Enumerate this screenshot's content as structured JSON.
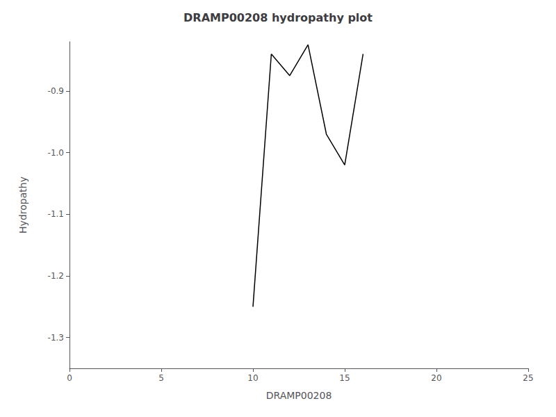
{
  "chart_data": {
    "type": "line",
    "title": "DRAMP00208 hydropathy plot",
    "xlabel": "DRAMP00208",
    "ylabel": "Hydropathy",
    "x": [
      10,
      11,
      12,
      12,
      13,
      14,
      15,
      16
    ],
    "values": [
      -1.25,
      -0.84,
      -0.875,
      -0.875,
      -0.825,
      -0.97,
      -1.02,
      -0.84
    ],
    "color": "#000000",
    "xlim": [
      0,
      25
    ],
    "xticks": [
      0,
      5,
      10,
      15,
      20,
      25
    ],
    "ylim": [
      -1.35,
      -0.82
    ],
    "yticks": [
      -1.3,
      -1.2,
      -1.1,
      {
        "value": -1.0,
        "label": "-1.0"
      },
      -0.9
    ],
    "grid": false
  }
}
